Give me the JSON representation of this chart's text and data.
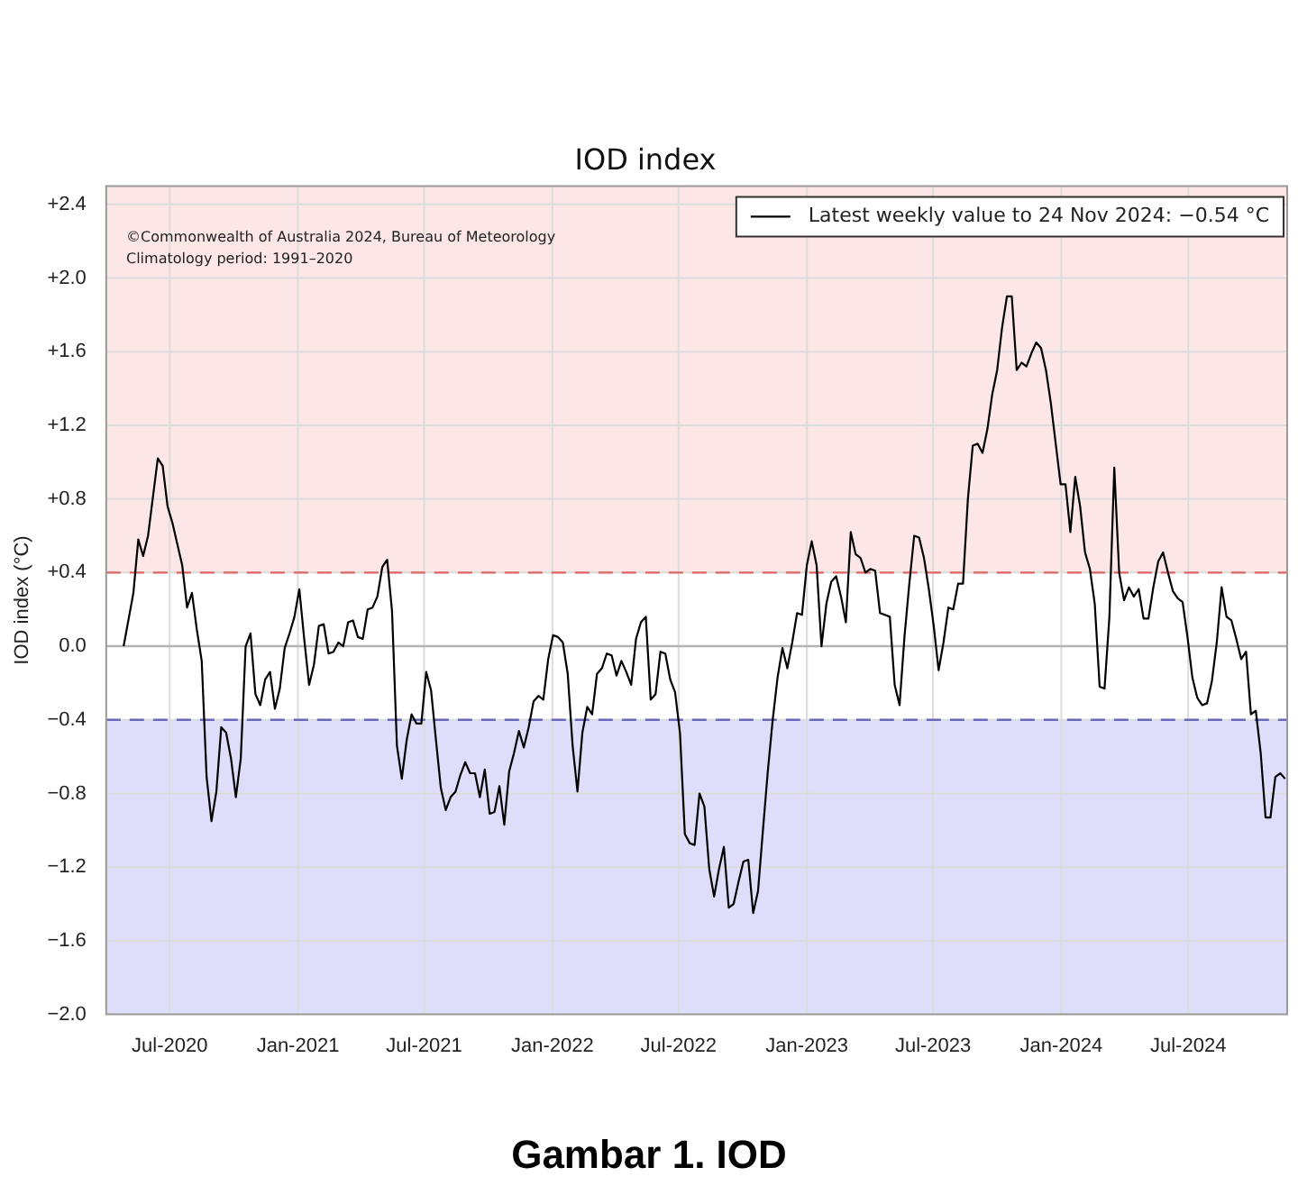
{
  "chart_data": {
    "type": "line",
    "title": "IOD index",
    "ylabel": "IOD index (°C)",
    "x": [
      "2020-04-26",
      "2020-05-10",
      "2020-05-17",
      "2020-05-24",
      "2020-05-31",
      "2020-06-14",
      "2020-06-21",
      "2020-06-28",
      "2020-07-05",
      "2020-07-19",
      "2020-07-26",
      "2020-08-02",
      "2020-08-09",
      "2020-08-16",
      "2020-08-23",
      "2020-08-30",
      "2020-09-06",
      "2020-09-13",
      "2020-09-20",
      "2020-09-27",
      "2020-10-04",
      "2020-10-11",
      "2020-10-18",
      "2020-10-25",
      "2020-11-01",
      "2020-11-08",
      "2020-11-15",
      "2020-11-22",
      "2020-11-29",
      "2020-12-06",
      "2020-12-13",
      "2020-12-20",
      "2020-12-27",
      "2021-01-03",
      "2021-01-10",
      "2021-01-17",
      "2021-01-24",
      "2021-01-31",
      "2021-02-07",
      "2021-02-14",
      "2021-02-21",
      "2021-02-28",
      "2021-03-07",
      "2021-03-14",
      "2021-03-21",
      "2021-03-28",
      "2021-04-04",
      "2021-04-11",
      "2021-04-18",
      "2021-04-25",
      "2021-05-02",
      "2021-05-09",
      "2021-05-16",
      "2021-05-23",
      "2021-05-30",
      "2021-06-06",
      "2021-06-13",
      "2021-06-20",
      "2021-06-27",
      "2021-07-04",
      "2021-07-11",
      "2021-07-18",
      "2021-07-25",
      "2021-08-01",
      "2021-08-08",
      "2021-08-15",
      "2021-08-22",
      "2021-08-29",
      "2021-09-05",
      "2021-09-12",
      "2021-09-19",
      "2021-09-26",
      "2021-10-03",
      "2021-10-10",
      "2021-10-17",
      "2021-10-24",
      "2021-10-31",
      "2021-11-07",
      "2021-11-14",
      "2021-11-21",
      "2021-11-28",
      "2021-12-05",
      "2021-12-12",
      "2021-12-19",
      "2021-12-26",
      "2022-01-02",
      "2022-01-09",
      "2022-01-16",
      "2022-01-23",
      "2022-01-30",
      "2022-02-06",
      "2022-02-13",
      "2022-02-20",
      "2022-02-27",
      "2022-03-06",
      "2022-03-13",
      "2022-03-20",
      "2022-03-27",
      "2022-04-03",
      "2022-04-10",
      "2022-04-17",
      "2022-04-24",
      "2022-05-01",
      "2022-05-08",
      "2022-05-15",
      "2022-05-22",
      "2022-05-29",
      "2022-06-05",
      "2022-06-12",
      "2022-06-19",
      "2022-06-26",
      "2022-07-03",
      "2022-07-10",
      "2022-07-17",
      "2022-07-24",
      "2022-07-31",
      "2022-08-07",
      "2022-08-14",
      "2022-08-21",
      "2022-08-28",
      "2022-09-04",
      "2022-09-11",
      "2022-09-18",
      "2022-09-25",
      "2022-10-02",
      "2022-10-09",
      "2022-10-16",
      "2022-10-23",
      "2022-10-30",
      "2022-11-06",
      "2022-11-13",
      "2022-11-20",
      "2022-11-27",
      "2022-12-04",
      "2022-12-11",
      "2022-12-18",
      "2022-12-25",
      "2023-01-01",
      "2023-01-08",
      "2023-01-15",
      "2023-01-22",
      "2023-01-29",
      "2023-02-05",
      "2023-02-12",
      "2023-02-19",
      "2023-02-26",
      "2023-03-05",
      "2023-03-12",
      "2023-03-19",
      "2023-03-26",
      "2023-04-02",
      "2023-04-09",
      "2023-04-16",
      "2023-04-23",
      "2023-04-30",
      "2023-05-07",
      "2023-05-14",
      "2023-05-21",
      "2023-05-28",
      "2023-06-04",
      "2023-06-11",
      "2023-06-18",
      "2023-06-25",
      "2023-07-02",
      "2023-07-09",
      "2023-07-16",
      "2023-07-23",
      "2023-07-30",
      "2023-08-06",
      "2023-08-13",
      "2023-08-20",
      "2023-08-27",
      "2023-09-03",
      "2023-09-10",
      "2023-09-17",
      "2023-09-24",
      "2023-10-01",
      "2023-10-08",
      "2023-10-15",
      "2023-10-22",
      "2023-10-29",
      "2023-11-05",
      "2023-11-12",
      "2023-11-19",
      "2023-11-26",
      "2023-12-03",
      "2023-12-10",
      "2023-12-17",
      "2023-12-24",
      "2023-12-31",
      "2024-01-07",
      "2024-01-14",
      "2024-01-21",
      "2024-01-28",
      "2024-02-04",
      "2024-02-11",
      "2024-02-18",
      "2024-02-25",
      "2024-03-03",
      "2024-03-10",
      "2024-03-17",
      "2024-03-24",
      "2024-03-31",
      "2024-04-07",
      "2024-04-14",
      "2024-04-21",
      "2024-04-28",
      "2024-05-05",
      "2024-05-12",
      "2024-05-19",
      "2024-05-26",
      "2024-06-02",
      "2024-06-09",
      "2024-06-16",
      "2024-06-23",
      "2024-06-30",
      "2024-07-07",
      "2024-07-14",
      "2024-07-21",
      "2024-07-28",
      "2024-08-04",
      "2024-08-11",
      "2024-08-18",
      "2024-08-25",
      "2024-09-01",
      "2024-09-08",
      "2024-09-15",
      "2024-09-22",
      "2024-09-29",
      "2024-10-06",
      "2024-10-13",
      "2024-10-20",
      "2024-10-27",
      "2024-11-03",
      "2024-11-10",
      "2024-11-17"
    ],
    "series": [
      {
        "name": "Latest weekly value to 24 Nov 2024: −0.54 °C",
        "color": "#000000",
        "values": [
          0.0,
          0.29,
          0.58,
          0.49,
          0.6,
          1.02,
          0.98,
          0.76,
          0.67,
          0.44,
          0.21,
          0.29,
          0.09,
          -0.08,
          -0.71,
          -0.95,
          -0.79,
          -0.44,
          -0.47,
          -0.61,
          -0.82,
          -0.61,
          0.0,
          0.07,
          -0.26,
          -0.32,
          -0.18,
          -0.14,
          -0.34,
          -0.23,
          -0.01,
          0.07,
          0.16,
          0.31,
          0.04,
          -0.21,
          -0.1,
          0.11,
          0.12,
          -0.04,
          -0.03,
          0.02,
          0.0,
          0.13,
          0.14,
          0.05,
          0.04,
          0.2,
          0.21,
          0.27,
          0.43,
          0.47,
          0.19,
          -0.54,
          -0.72,
          -0.51,
          -0.37,
          -0.42,
          -0.42,
          -0.14,
          -0.24,
          -0.51,
          -0.77,
          -0.89,
          -0.82,
          -0.79,
          -0.7,
          -0.63,
          -0.69,
          -0.69,
          -0.82,
          -0.67,
          -0.91,
          -0.9,
          -0.76,
          -0.97,
          -0.68,
          -0.58,
          -0.46,
          -0.55,
          -0.44,
          -0.3,
          -0.27,
          -0.29,
          -0.07,
          0.06,
          0.05,
          0.02,
          -0.15,
          -0.54,
          -0.79,
          -0.47,
          -0.33,
          -0.37,
          -0.15,
          -0.12,
          -0.04,
          -0.05,
          -0.16,
          -0.08,
          -0.14,
          -0.21,
          0.04,
          0.13,
          0.16,
          -0.29,
          -0.26,
          -0.03,
          -0.04,
          -0.18,
          -0.25,
          -0.47,
          -1.02,
          -1.07,
          -1.08,
          -0.8,
          -0.87,
          -1.21,
          -1.36,
          -1.21,
          -1.09,
          -1.42,
          -1.4,
          -1.28,
          -1.17,
          -1.16,
          -1.45,
          -1.33,
          -1.0,
          -0.68,
          -0.4,
          -0.17,
          -0.01,
          -0.12,
          0.02,
          0.18,
          0.17,
          0.44,
          0.57,
          0.44,
          0.0,
          0.23,
          0.35,
          0.38,
          0.27,
          0.13,
          0.62,
          0.5,
          0.48,
          0.4,
          0.42,
          0.41,
          0.18,
          0.17,
          0.16,
          -0.21,
          -0.32,
          0.05,
          0.34,
          0.6,
          0.59,
          0.48,
          0.31,
          0.11,
          -0.13,
          0.02,
          0.21,
          0.2,
          0.34,
          0.34,
          0.8,
          1.09,
          1.1,
          1.05,
          1.18,
          1.37,
          1.5,
          1.73,
          1.9,
          1.9,
          1.5,
          1.54,
          1.52,
          1.59,
          1.65,
          1.62,
          1.5,
          1.32,
          1.1,
          0.88,
          0.88,
          0.62,
          0.92,
          0.76,
          0.51,
          0.42,
          0.23,
          -0.22,
          -0.23,
          0.16,
          0.97,
          0.4,
          0.25,
          0.32,
          0.27,
          0.31,
          0.15,
          0.15,
          0.32,
          0.46,
          0.51,
          0.4,
          0.3,
          0.26,
          0.24,
          0.05,
          -0.17,
          -0.28,
          -0.32,
          -0.31,
          -0.19,
          0.02,
          0.32,
          0.16,
          0.14,
          0.04,
          -0.07,
          -0.03,
          -0.37,
          -0.35,
          -0.58,
          -0.93,
          -0.93,
          -0.71,
          -0.69,
          -0.72
        ]
      }
    ],
    "xlim": [
      "2020-04-01",
      "2024-11-20"
    ],
    "xticks": [
      {
        "value": "2020-07-01",
        "label": "Jul-2020"
      },
      {
        "value": "2021-01-01",
        "label": "Jan-2021"
      },
      {
        "value": "2021-07-01",
        "label": "Jul-2021"
      },
      {
        "value": "2022-01-01",
        "label": "Jan-2022"
      },
      {
        "value": "2022-07-01",
        "label": "Jul-2022"
      },
      {
        "value": "2023-01-01",
        "label": "Jan-2023"
      },
      {
        "value": "2023-07-01",
        "label": "Jul-2023"
      },
      {
        "value": "2024-01-01",
        "label": "Jan-2024"
      },
      {
        "value": "2024-07-01",
        "label": "Jul-2024"
      }
    ],
    "ylim": [
      -2.0,
      2.5
    ],
    "yticks": [
      {
        "value": 2.4,
        "label": "+2.4"
      },
      {
        "value": 2.0,
        "label": "+2.0"
      },
      {
        "value": 1.6,
        "label": "+1.6"
      },
      {
        "value": 1.2,
        "label": "+1.2"
      },
      {
        "value": 0.8,
        "label": "+0.8"
      },
      {
        "value": 0.4,
        "label": "+0.4"
      },
      {
        "value": 0.0,
        "label": "0.0"
      },
      {
        "value": -0.4,
        "label": "−0.4"
      },
      {
        "value": -0.8,
        "label": "−0.8"
      },
      {
        "value": -1.2,
        "label": "−1.2"
      },
      {
        "value": -1.6,
        "label": "−1.6"
      },
      {
        "value": -2.0,
        "label": "−2.0"
      }
    ],
    "bands": [
      {
        "axis": "y",
        "from": 0.4,
        "to": 2.5,
        "color": "#fde6e6"
      },
      {
        "axis": "y",
        "from": -2.0,
        "to": -0.4,
        "color": "#dedefa"
      }
    ],
    "ref_lines": [
      {
        "axis": "y",
        "value": 0.4,
        "color": "#e06666",
        "line_style": "dashed"
      },
      {
        "axis": "y",
        "value": -0.4,
        "color": "#6a6ab8",
        "line_style": "dashed"
      },
      {
        "axis": "y",
        "value": 0.0,
        "color": "#b4b4b4",
        "line_style": "solid"
      }
    ],
    "annotations": [
      "©Commonwealth of Australia 2024, Bureau of Meteorology",
      "Climatology period: 1991–2020",
      "Gambar 1. IOD"
    ],
    "grid": true,
    "legend": "top right",
    "marker": "none",
    "line_style": "solid"
  }
}
